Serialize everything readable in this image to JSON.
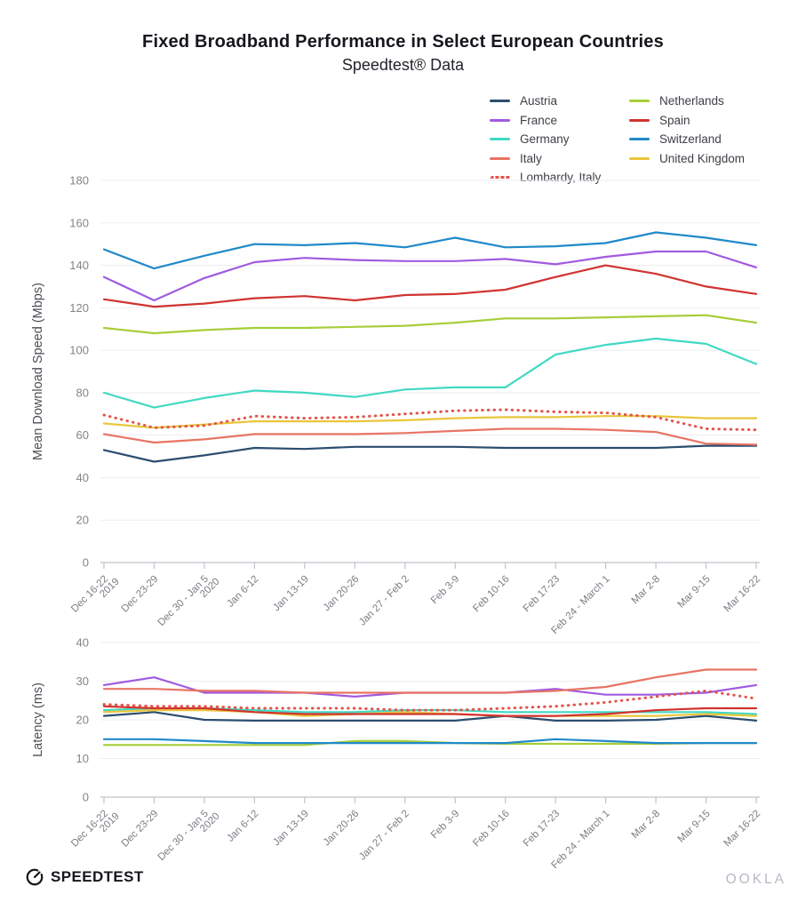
{
  "title": "Fixed Broadband Performance in Select European Countries",
  "subtitle": "Speedtest® Data",
  "footer": {
    "speedtest_label": "SPEEDTEST",
    "ookla_label": "OOKLA"
  },
  "colors": {
    "austria": "#2c4d6e",
    "france": "#a15ae0",
    "germany": "#41d9c3",
    "italy": "#e87464",
    "lombardy": "#e2544a",
    "netherlands": "#a6ce39",
    "spain": "#d03330",
    "switzerland": "#2089c9",
    "united_kingdom": "#e9c63b",
    "grid": "#ededf1",
    "axis": "#c2c2ca",
    "tick_text": "#83838b",
    "category_text": "#7c7c85",
    "axis_title_text": "#4e4e57"
  },
  "countries": [
    {
      "id": "austria",
      "label": "Austria",
      "dotted": false
    },
    {
      "id": "france",
      "label": "France",
      "dotted": false
    },
    {
      "id": "germany",
      "label": "Germany",
      "dotted": false
    },
    {
      "id": "italy",
      "label": "Italy",
      "dotted": false
    },
    {
      "id": "lombardy",
      "label": "Lombardy, Italy",
      "dotted": true
    },
    {
      "id": "netherlands",
      "label": "Netherlands",
      "dotted": false
    },
    {
      "id": "spain",
      "label": "Spain",
      "dotted": false
    },
    {
      "id": "switzerland",
      "label": "Switzerland",
      "dotted": false
    },
    {
      "id": "united_kingdom",
      "label": "United Kingdom",
      "dotted": false
    }
  ],
  "legend_columns": [
    [
      "austria",
      "france",
      "germany",
      "italy",
      "lombardy"
    ],
    [
      "netherlands",
      "spain",
      "switzerland",
      "united_kingdom"
    ]
  ],
  "chart_data": [
    {
      "type": "line",
      "title": "",
      "ylabel": "Mean Download Speed (Mbps)",
      "ylim": [
        0,
        180
      ],
      "yticks": [
        0,
        20,
        40,
        60,
        80,
        100,
        120,
        140,
        160,
        180
      ],
      "grid": true,
      "legend_position": "top-right",
      "categories": [
        "Dec 16-22\n2019",
        "Dec 23-29",
        "Dec 30 - Jan 5\n2020",
        "Jan 6-12",
        "Jan 13-19",
        "Jan 20-26",
        "Jan 27 - Feb 2",
        "Feb 3-9",
        "Feb 10-16",
        "Feb 17-23",
        "Feb 24 - March 1",
        "Mar 2-8",
        "Mar 9-15",
        "Mar 16-22"
      ],
      "series": [
        {
          "country": "austria",
          "name": "Austria",
          "values": [
            53,
            47.5,
            50.5,
            54,
            53.5,
            54.5,
            54.5,
            54.5,
            54,
            54,
            54,
            54,
            55,
            55
          ]
        },
        {
          "country": "france",
          "name": "France",
          "values": [
            134.5,
            123.5,
            134,
            141.5,
            143.5,
            142.5,
            142,
            142,
            143,
            140.5,
            144,
            146.5,
            146.5,
            139
          ]
        },
        {
          "country": "germany",
          "name": "Germany",
          "values": [
            80,
            73,
            77.5,
            81,
            80,
            78,
            81.5,
            82.5,
            82.5,
            98,
            102.5,
            105.5,
            103,
            93.5
          ]
        },
        {
          "country": "italy",
          "name": "Italy",
          "values": [
            60.5,
            56.5,
            58,
            60.5,
            60.5,
            60.5,
            61,
            62,
            63,
            63,
            62.5,
            61.5,
            56,
            55.5
          ]
        },
        {
          "country": "lombardy",
          "name": "Lombardy, Italy",
          "values": [
            69.5,
            63.5,
            64.5,
            69,
            68,
            68.5,
            70,
            71.5,
            72,
            71,
            70.5,
            68.5,
            63,
            62.5
          ]
        },
        {
          "country": "netherlands",
          "name": "Netherlands",
          "values": [
            110.5,
            108,
            109.5,
            110.5,
            110.5,
            111,
            111.5,
            113,
            115,
            115,
            115.5,
            116,
            116.5,
            113
          ]
        },
        {
          "country": "spain",
          "name": "Spain",
          "values": [
            124,
            120.5,
            122,
            124.5,
            125.5,
            123.5,
            126,
            126.5,
            128.5,
            134.5,
            140,
            136,
            130,
            126.5
          ]
        },
        {
          "country": "switzerland",
          "name": "Switzerland",
          "values": [
            147.5,
            138.5,
            144.5,
            150,
            149.5,
            150.5,
            148.5,
            153,
            148.5,
            149,
            150.5,
            155.5,
            153,
            149.5
          ]
        },
        {
          "country": "united_kingdom",
          "name": "United Kingdom",
          "values": [
            65.5,
            63.5,
            65,
            66.5,
            66.5,
            66.5,
            67,
            68,
            68.5,
            68.5,
            69,
            69,
            68,
            68
          ]
        }
      ]
    },
    {
      "type": "line",
      "title": "",
      "ylabel": "Latency (ms)",
      "ylim": [
        0,
        40
      ],
      "yticks": [
        0,
        10,
        20,
        30,
        40
      ],
      "grid": true,
      "categories": [
        "Dec 16-22\n2019",
        "Dec 23-29",
        "Dec 30 - Jan 5\n2020",
        "Jan 6-12",
        "Jan 13-19",
        "Jan 20-26",
        "Jan 27 - Feb 2",
        "Feb 3-9",
        "Feb 10-16",
        "Feb 17-23",
        "Feb 24 - March 1",
        "Mar 2-8",
        "Mar 9-15",
        "Mar 16-22"
      ],
      "series": [
        {
          "country": "austria",
          "name": "Austria",
          "values": [
            21,
            22,
            20,
            19.8,
            19.8,
            19.8,
            19.8,
            19.8,
            21,
            19.8,
            19.8,
            20,
            21,
            19.8
          ]
        },
        {
          "country": "france",
          "name": "France",
          "values": [
            29,
            31,
            27,
            27,
            27,
            26,
            27,
            27,
            27,
            28,
            26.5,
            26.5,
            27,
            29
          ]
        },
        {
          "country": "germany",
          "name": "Germany",
          "values": [
            22.5,
            23,
            23,
            22.5,
            22,
            22,
            22.5,
            22.5,
            22,
            22,
            22,
            22,
            22,
            21.5
          ]
        },
        {
          "country": "italy",
          "name": "Italy",
          "values": [
            28,
            28,
            27.5,
            27.5,
            27,
            27,
            27,
            27,
            27,
            27.5,
            28.5,
            31,
            33,
            33
          ]
        },
        {
          "country": "lombardy",
          "name": "Lombardy, Italy",
          "values": [
            24,
            23.5,
            23.5,
            23,
            23,
            23,
            22.5,
            22.5,
            23,
            23.5,
            24.5,
            26,
            27.5,
            25.5
          ]
        },
        {
          "country": "netherlands",
          "name": "Netherlands",
          "values": [
            13.5,
            13.5,
            13.5,
            13.5,
            13.5,
            14.5,
            14.5,
            14,
            13.8,
            13.8,
            13.8,
            13.8,
            14,
            14
          ]
        },
        {
          "country": "spain",
          "name": "Spain",
          "values": [
            23.5,
            23,
            23,
            22,
            21.5,
            21.5,
            21.5,
            21.5,
            21,
            21,
            21.5,
            22.5,
            23,
            23
          ]
        },
        {
          "country": "switzerland",
          "name": "Switzerland",
          "values": [
            15,
            15,
            14.5,
            14,
            14,
            14,
            14,
            14,
            14,
            15,
            14.5,
            14,
            14,
            14
          ]
        },
        {
          "country": "united_kingdom",
          "name": "United Kingdom",
          "values": [
            22,
            22.5,
            22.5,
            22,
            21,
            21.5,
            22,
            21.5,
            21,
            21,
            21,
            21,
            21.5,
            21
          ]
        }
      ]
    }
  ]
}
